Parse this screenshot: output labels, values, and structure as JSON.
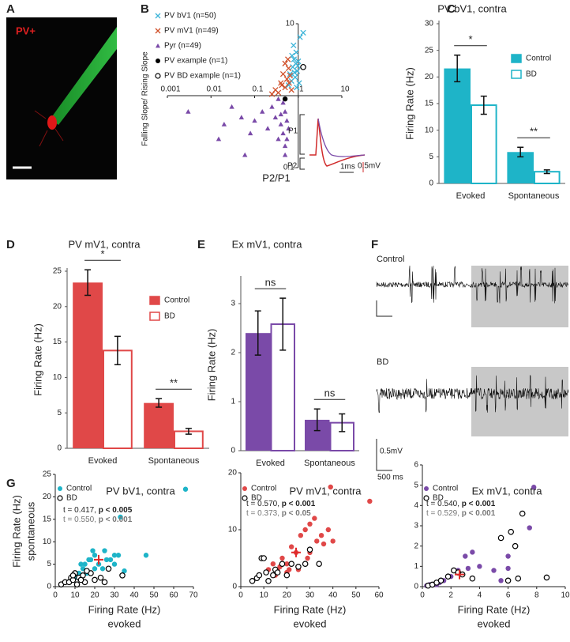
{
  "panel_a": {
    "letter": "A",
    "label": "PV+"
  },
  "panel_f": {
    "letter": "F",
    "trace_labels": [
      "Control",
      "BD"
    ],
    "scale_y": "0.5mV",
    "scale_x": "500 ms"
  },
  "chart_data": [
    {
      "type": "scatter",
      "letter": "B",
      "log": true,
      "axes_cross": [
        1,
        1
      ],
      "xlabel": "P2/P1",
      "ylabel": "Falling Slope/ Rising Slope",
      "xlim": [
        0.001,
        10
      ],
      "ylim": [
        0.1,
        10
      ],
      "xticks": [
        0.001,
        0.01,
        0.1,
        1,
        10
      ],
      "yticks": [
        0.1,
        10
      ],
      "series": [
        {
          "name": "PV bV1 (n=50)",
          "color": "#3bb4d8",
          "marker": "x",
          "x": [
            0.75,
            0.8,
            0.85,
            0.9,
            0.95,
            1.0,
            0.7,
            0.65,
            0.88,
            1.05,
            0.78,
            0.92,
            1.1,
            0.6,
            0.82,
            1.3,
            0.72,
            0.98
          ],
          "values": [
            2.5,
            3.2,
            1.8,
            4.0,
            2.2,
            3.0,
            1.6,
            2.0,
            2.8,
            1.5,
            5.0,
            1.3,
            6.5,
            1.4,
            2.1,
            7.5,
            3.6,
            2.6
          ]
        },
        {
          "name": "PV mV1 (n=49)",
          "color": "#d0502a",
          "marker": "x",
          "x": [
            0.3,
            0.4,
            0.45,
            0.5,
            0.55,
            0.6,
            0.35,
            0.65,
            0.5,
            0.42,
            0.7,
            0.58,
            0.25,
            0.62
          ],
          "values": [
            1.2,
            1.5,
            2.0,
            1.3,
            1.7,
            2.4,
            1.1,
            1.9,
            2.8,
            1.4,
            1.2,
            3.2,
            1.05,
            1.5
          ]
        },
        {
          "name": "Pyr (n=49)",
          "color": "#7a4aa8",
          "marker": "triangle",
          "x": [
            0.003,
            0.02,
            0.03,
            0.05,
            0.08,
            0.1,
            0.15,
            0.2,
            0.25,
            0.3,
            0.35,
            0.4,
            0.45,
            0.5,
            0.5,
            0.55,
            0.6,
            0.5,
            0.45,
            0.35,
            0.06,
            0.015,
            0.4,
            0.55
          ],
          "values": [
            0.6,
            0.4,
            0.7,
            0.5,
            0.3,
            0.45,
            0.6,
            0.35,
            0.7,
            0.5,
            0.25,
            0.4,
            0.3,
            0.2,
            0.6,
            0.45,
            0.35,
            0.15,
            0.8,
            0.9,
            0.15,
            0.25,
            0.55,
            0.25
          ]
        },
        {
          "name": "PV example (n=1)",
          "color": "#000000",
          "marker": "dot",
          "x": [
            0.5
          ],
          "values": [
            0.9
          ]
        },
        {
          "name": "PV BD example (n=1)",
          "color": "#000000",
          "marker": "circle",
          "x": [
            1.3
          ],
          "values": [
            2.5
          ]
        }
      ],
      "inset": {
        "p1": "P1",
        "p2": "P2",
        "time": "1ms",
        "amp": "0.5mV"
      }
    },
    {
      "type": "bar",
      "letter": "C",
      "title": "PV bV1, contra",
      "ylabel": "Firing Rate (Hz)",
      "categories": [
        "Evoked",
        "Spontaneous"
      ],
      "ylim": [
        0,
        30
      ],
      "yticks": [
        0,
        5,
        10,
        15,
        20,
        25,
        30
      ],
      "legend": true,
      "series": [
        {
          "name": "Control",
          "color": "#1eb4c8",
          "fill": "solid",
          "values": [
            21.6,
            5.9
          ],
          "errors": [
            2.5,
            0.9
          ]
        },
        {
          "name": "BD",
          "color": "#1eb4c8",
          "fill": "open",
          "values": [
            14.7,
            2.2
          ],
          "errors": [
            1.7,
            0.35
          ]
        }
      ],
      "significance": [
        "*",
        "**"
      ]
    },
    {
      "type": "bar",
      "letter": "D",
      "title": "PV mV1, contra",
      "ylabel": "Firing Rate (Hz)",
      "categories": [
        "Evoked",
        "Spontaneous"
      ],
      "ylim": [
        0,
        25
      ],
      "yticks": [
        0,
        5,
        10,
        15,
        20,
        25
      ],
      "legend": true,
      "series": [
        {
          "name": "Control",
          "color": "#e04848",
          "fill": "solid",
          "values": [
            23.4,
            6.4
          ],
          "errors": [
            1.8,
            0.6
          ]
        },
        {
          "name": "BD",
          "color": "#e04848",
          "fill": "open",
          "values": [
            13.8,
            2.4
          ],
          "errors": [
            2.0,
            0.4
          ]
        }
      ],
      "significance": [
        "*",
        "**"
      ]
    },
    {
      "type": "bar",
      "letter": "E",
      "title": "Ex mV1, contra",
      "ylabel": "Firing Rate (Hz)",
      "categories": [
        "Evoked",
        "Spontaneous"
      ],
      "ylim": [
        0,
        3.5
      ],
      "yticks": [
        0,
        1,
        2,
        3
      ],
      "legend": false,
      "series": [
        {
          "name": "Control",
          "color": "#7a4aa8",
          "fill": "solid",
          "values": [
            2.4,
            0.63
          ],
          "errors": [
            0.45,
            0.22
          ]
        },
        {
          "name": "BD",
          "color": "#7a4aa8",
          "fill": "open",
          "values": [
            2.58,
            0.57
          ],
          "errors": [
            0.53,
            0.18
          ]
        }
      ],
      "significance": [
        "ns",
        "ns"
      ]
    },
    {
      "type": "scatter",
      "letter": "G",
      "title": "PV bV1, contra",
      "xlabel": "Firing Rate (Hz)",
      "xlabel_sub": "evoked",
      "ylabel": "Firing Rate (Hz)",
      "ylabel_sub": "spontaneous",
      "xlim": [
        0,
        70
      ],
      "ylim": [
        0,
        25
      ],
      "xticks": [
        0,
        10,
        20,
        30,
        40,
        50,
        60,
        70
      ],
      "yticks": [
        0,
        5,
        10,
        15,
        20,
        25
      ],
      "series": [
        {
          "name": "Control",
          "color": "#1eb4c8",
          "marker": "dot",
          "x": [
            10,
            12,
            14,
            15,
            18,
            20,
            22,
            25,
            28,
            30,
            32,
            33,
            46,
            66,
            16,
            24,
            26,
            19,
            13,
            20,
            30,
            17,
            35
          ],
          "values": [
            2,
            3,
            4,
            5,
            6,
            7,
            5,
            8,
            6,
            5,
            7,
            15.5,
            7,
            21.7,
            3,
            4,
            6,
            8,
            5,
            4,
            7,
            6,
            3.5
          ]
        },
        {
          "name": "BD",
          "color": "#000000",
          "marker": "circle",
          "x": [
            3,
            5,
            7,
            8,
            9,
            10,
            11,
            12,
            14,
            15,
            18,
            20,
            23,
            25,
            27,
            34,
            9,
            13,
            16
          ],
          "values": [
            0.5,
            1,
            1,
            2,
            1.5,
            3,
            0.5,
            2,
            2.5,
            1,
            3,
            1.5,
            2,
            1,
            4,
            2.5,
            2.5,
            1.5,
            3.5
          ]
        }
      ],
      "mean": {
        "x": 22,
        "y": 6,
        "color": "#e02828"
      },
      "stats": [
        {
          "t": "t = 0.417,",
          "p": "p < 0.005",
          "color": "#222222"
        },
        {
          "t": "t = 0.550,",
          "p": "p < 0.001",
          "color": "#777777"
        }
      ]
    },
    {
      "type": "scatter",
      "title": "PV mV1, contra",
      "xlabel": "Firing Rate (Hz)",
      "xlabel_sub": "evoked",
      "xlim": [
        0,
        60
      ],
      "ylim": [
        0,
        20
      ],
      "xticks": [
        0,
        10,
        20,
        30,
        40,
        50,
        60
      ],
      "yticks": [
        0,
        10,
        20
      ],
      "series": [
        {
          "name": "Control",
          "color": "#e04848",
          "marker": "dot",
          "x": [
            12,
            14,
            16,
            18,
            20,
            22,
            24,
            26,
            28,
            30,
            32,
            35,
            38,
            40,
            39,
            56,
            15,
            20,
            25,
            30,
            36,
            33,
            29,
            17,
            21
          ],
          "values": [
            3,
            4,
            3,
            5,
            4,
            7,
            6,
            9,
            10,
            11,
            12,
            9,
            10,
            8,
            17.5,
            15,
            2,
            2.5,
            3,
            6,
            7.5,
            8,
            5,
            3.5,
            3
          ]
        },
        {
          "name": "BD",
          "color": "#000000",
          "marker": "circle",
          "x": [
            5,
            7,
            8,
            9,
            10,
            12,
            14,
            15,
            16,
            18,
            20,
            22,
            25,
            28,
            30,
            34,
            11
          ],
          "values": [
            1,
            1.5,
            2,
            5,
            5,
            1,
            2,
            3,
            2.5,
            4,
            2,
            4,
            3.5,
            4,
            6.5,
            4,
            2.5
          ]
        }
      ],
      "mean": {
        "x": 24,
        "y": 6,
        "color": "#e02828"
      },
      "stats": [
        {
          "t": "t = 0.570,",
          "p": "p < 0.001",
          "color": "#222222"
        },
        {
          "t": "t = 0.373,",
          "p": "p < 0.05",
          "color": "#777777"
        }
      ]
    },
    {
      "type": "scatter",
      "title": "Ex mV1, contra",
      "xlabel": "Firing Rate (Hz)",
      "xlabel_sub": "evoked",
      "xlim": [
        0,
        10
      ],
      "ylim": [
        0,
        6
      ],
      "xticks": [
        0,
        2,
        4,
        6,
        8,
        10
      ],
      "yticks": [
        0,
        1,
        2,
        3,
        4,
        5,
        6
      ],
      "series": [
        {
          "name": "Control",
          "color": "#7a4aa8",
          "marker": "dot",
          "x": [
            0.3,
            0.5,
            0.8,
            1,
            1.2,
            1.5,
            2,
            2.5,
            3,
            3.5,
            4,
            5,
            5.5,
            6,
            6,
            7.5,
            7.8,
            3.2
          ],
          "values": [
            0.05,
            0.1,
            0.1,
            0.1,
            0.2,
            0.3,
            0.5,
            0.8,
            1.5,
            1.7,
            1,
            0.8,
            0.3,
            1.5,
            0.9,
            2.9,
            4.9,
            0.9
          ]
        },
        {
          "name": "BD",
          "color": "#000000",
          "marker": "circle",
          "x": [
            0.4,
            0.7,
            1,
            1.3,
            1.8,
            2.2,
            2.8,
            3.5,
            5.5,
            6.5,
            6.2,
            7,
            6,
            6.7,
            8.7,
            2.5
          ],
          "values": [
            0.05,
            0.1,
            0.2,
            0.3,
            0.5,
            0.8,
            0.6,
            0.4,
            2.4,
            2.0,
            2.7,
            3.6,
            0.3,
            0.4,
            0.45,
            0.7
          ]
        }
      ],
      "mean": {
        "x": 2.6,
        "y": 0.6,
        "color": "#e02828"
      },
      "stats": [
        {
          "t": "t = 0.540,",
          "p": "p < 0.001",
          "color": "#222222"
        },
        {
          "t": "t = 0.529,",
          "p": "p < 0.001",
          "color": "#777777"
        }
      ]
    }
  ]
}
